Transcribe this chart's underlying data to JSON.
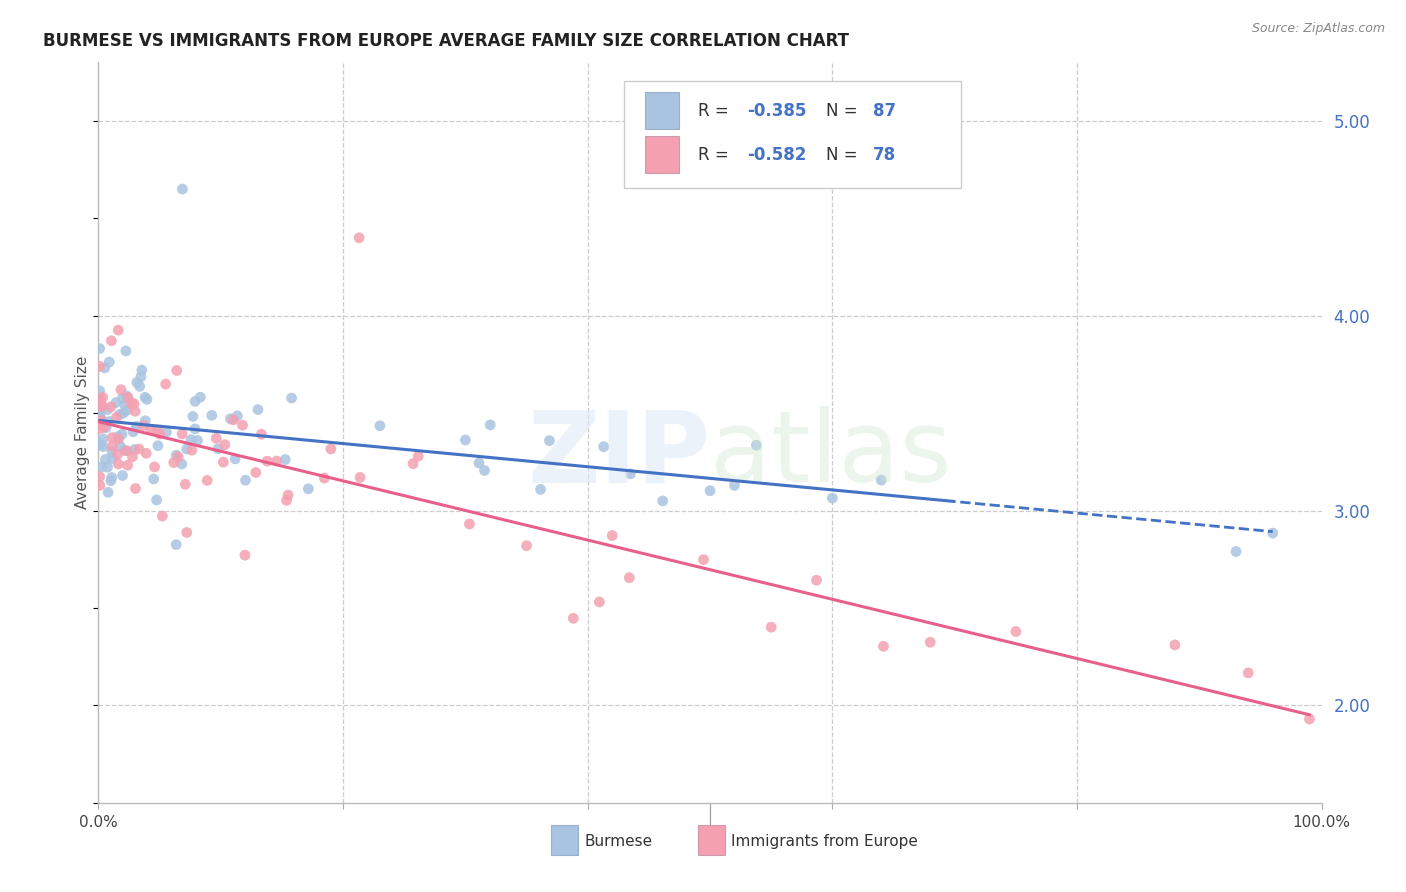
{
  "title": "BURMESE VS IMMIGRANTS FROM EUROPE AVERAGE FAMILY SIZE CORRELATION CHART",
  "source": "Source: ZipAtlas.com",
  "ylabel": "Average Family Size",
  "xlim": [
    0,
    1
  ],
  "ylim": [
    1.5,
    5.3
  ],
  "background_color": "#ffffff",
  "burmese_color": "#a8c4e0",
  "europe_color": "#f4a0b0",
  "burmese_line_color": "#4472c4",
  "europe_line_color": "#e8608a",
  "R_burmese": -0.385,
  "N_burmese": 87,
  "R_europe": -0.582,
  "N_europe": 78,
  "grid_color": "#cccccc",
  "grid_yticks": [
    2.0,
    3.0,
    4.0,
    5.0
  ],
  "grid_xticks": [
    0.2,
    0.4,
    0.6,
    0.8
  ],
  "right_yticklabels": [
    "2.00",
    "3.00",
    "4.00",
    "5.00"
  ],
  "watermark_zip_color": "#dce8f5",
  "watermark_atlas_color": "#d0e8d0"
}
